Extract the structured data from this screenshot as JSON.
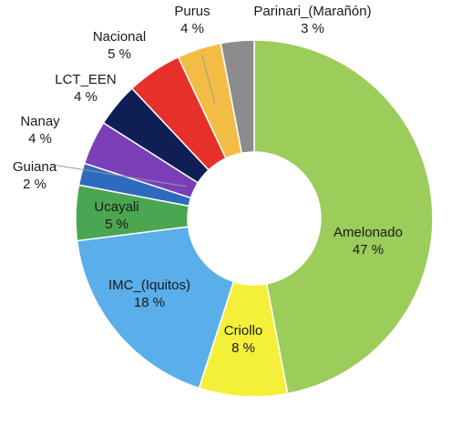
{
  "chart_data": {
    "type": "pie",
    "donut": true,
    "categories": [
      "Amelonado",
      "Criollo",
      "IMC_(Iquitos)",
      "Ucayali",
      "Guiana",
      "Nanay",
      "LCT_EEN",
      "Nacional",
      "Purus",
      "Parinari_(Marañón)"
    ],
    "values": [
      47,
      8,
      18,
      5,
      2,
      4,
      4,
      5,
      4,
      3
    ],
    "value_labels": [
      "47 %",
      "8 %",
      "18 %",
      "5 %",
      "2 %",
      "4 %",
      "4 %",
      "5 %",
      "4 %",
      "3 %"
    ],
    "colors": [
      "#9ccc5a",
      "#f4f03a",
      "#5aaeea",
      "#4aa650",
      "#2e6bbf",
      "#7a3fb8",
      "#0f1f55",
      "#e8302a",
      "#f3bd45",
      "#8c8c8c"
    ],
    "title": "",
    "legend": "none"
  }
}
